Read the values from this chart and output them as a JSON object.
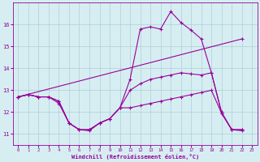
{
  "xlabel": "Windchill (Refroidissement éolien,°C)",
  "bg_color": "#d6eef2",
  "grid_color": "#aecfd8",
  "line_color": "#990099",
  "xlim": [
    -0.5,
    23.5
  ],
  "ylim": [
    10.5,
    17.0
  ],
  "xticks": [
    0,
    1,
    2,
    3,
    4,
    5,
    6,
    7,
    8,
    9,
    10,
    11,
    12,
    13,
    14,
    15,
    16,
    17,
    18,
    19,
    20,
    21,
    22,
    23
  ],
  "yticks": [
    11,
    12,
    13,
    14,
    15,
    16
  ],
  "series1": {
    "x": [
      0,
      1,
      2,
      3,
      4,
      5,
      6,
      7,
      8,
      9,
      10,
      11,
      12,
      13,
      14,
      15,
      16,
      17,
      18,
      19,
      20,
      21,
      22
    ],
    "y": [
      12.7,
      12.8,
      12.7,
      12.7,
      12.5,
      11.5,
      11.2,
      11.2,
      11.5,
      11.7,
      12.2,
      13.5,
      15.8,
      15.9,
      15.8,
      16.6,
      16.1,
      15.75,
      15.35,
      13.8,
      12.0,
      11.2,
      11.2
    ]
  },
  "series2": {
    "x": [
      0,
      1,
      2,
      3,
      4,
      5,
      6,
      7,
      8,
      9,
      10,
      11,
      12,
      13,
      14,
      15,
      16,
      17,
      18,
      19,
      20,
      21,
      22
    ],
    "y": [
      12.7,
      12.8,
      12.7,
      12.7,
      12.4,
      11.5,
      11.2,
      11.15,
      11.5,
      11.7,
      12.2,
      12.2,
      12.3,
      12.4,
      12.5,
      12.6,
      12.7,
      12.8,
      12.9,
      13.0,
      11.95,
      11.2,
      11.15
    ]
  },
  "series3": {
    "x": [
      0,
      22
    ],
    "y": [
      12.7,
      15.35
    ]
  },
  "series4": {
    "x": [
      0,
      1,
      2,
      3,
      4,
      5,
      6,
      7,
      8,
      9,
      10,
      11,
      12,
      13,
      14,
      15,
      16,
      17,
      18,
      19,
      20,
      21,
      22
    ],
    "y": [
      12.7,
      12.8,
      12.7,
      12.7,
      12.5,
      11.5,
      11.2,
      11.2,
      11.5,
      11.7,
      12.2,
      13.0,
      13.3,
      13.5,
      13.6,
      13.7,
      13.8,
      13.75,
      13.7,
      13.8,
      11.95,
      11.2,
      11.2
    ]
  }
}
